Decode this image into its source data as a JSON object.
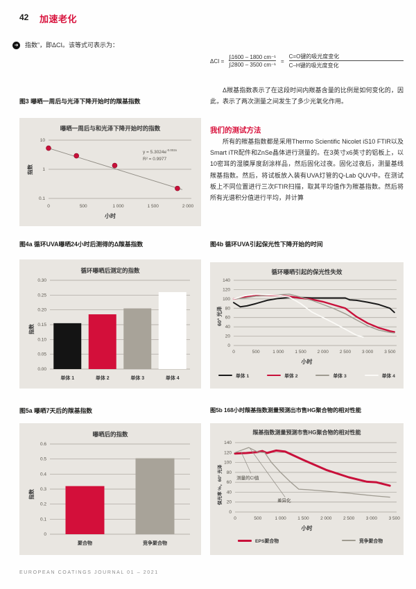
{
  "page": {
    "number": "42",
    "section_title": "加速老化",
    "footer": "EUROPEAN COATINGS JOURNAL 01 – 2021"
  },
  "colors": {
    "accent_red": "#d8123c",
    "panel_background": "#e9e6e1",
    "gridline": "#a6a19a"
  },
  "intro": {
    "bullet_text": "指数”，即ΔCI。该等式可表示为：",
    "formula": {
      "lhs": "ΔCI =",
      "frac1_num": "∫ᵢ1600 – 1800 cm⁻¹",
      "frac1_den": "∫ᵢ2800 – 3500 cm⁻¹",
      "equals": "=",
      "frac2_num": "C=O键的吸光度变化",
      "frac2_den": "C–H键的吸光度变化"
    },
    "paragraph": "Δ羰基指数表示了在这段时间内羰基含量的比例是如何变化的，因此，表示了两次测量之间发生了多少光氧化作用。"
  },
  "method": {
    "heading": "我们的测试方法",
    "paragraph": "所有的羰基指数都是采用Thermo Scientific Nicolet iS10 FTIR以及Smart iTR配件和ZnSe晶体进行测量的。在3英寸x6英寸的铝板上，以10密耳的湿膜厚度刮涂样品，然后固化过夜。固化过夜后，测量基线羰基指数。然后，将试板放入装有UVA灯管的Q-Lab QUV中。在测试板上不同位置进行三次FTIR扫描，取其平均值作为羰基指数。然后将所有光谱积分值进行平均，并计算"
  },
  "figures": {
    "fig3_caption": "图3 曝晒一周后与光泽下降开始时的羰基指数",
    "fig4a_caption": "图4a 循环UVA曝晒24小时后测得的Δ羰基指数",
    "fig4b_caption": "图4b 循环UVA引起保光性下降开始的时间",
    "fig5a_caption": "图5a 曝晒7天后的羰基指数",
    "fig5b_caption": "图5b 168小时羰基指数测量预测出市售HG聚合物的相对性能"
  },
  "chart_data": [
    {
      "id": "fig3",
      "type": "scatter",
      "title": "曝晒一周后与和光泽下降开始时的指数",
      "xlabel": "小时",
      "ylabel": "指数",
      "yscale": "log",
      "ylim": [
        0.1,
        10
      ],
      "xlim": [
        0,
        2050
      ],
      "yticks": {
        "values": [
          10,
          1,
          0.1
        ],
        "labels": [
          "10",
          "1",
          "0.1"
        ]
      },
      "xticks": {
        "values": [
          0,
          500,
          1000,
          1500,
          2000
        ],
        "labels": [
          "0",
          "500",
          "1 000",
          "1 500",
          "2 000"
        ]
      },
      "points": [
        [
          0,
          5.3
        ],
        [
          400,
          2.9
        ],
        [
          950,
          1.35
        ],
        [
          1850,
          0.22
        ]
      ],
      "trend": {
        "x": [
          0,
          1920
        ],
        "y": [
          5.3,
          0.2
        ]
      },
      "point_color": "#c8103a",
      "equation": {
        "base": "y = 5.3024e",
        "exponent": "-0.002x",
        "r2": "R² = 0.9977"
      }
    },
    {
      "id": "fig4a",
      "type": "bar",
      "title": "循环曝晒后测定的指数",
      "ylabel": "指数",
      "ylim": [
        0,
        0.3
      ],
      "yticks": {
        "values": [
          0,
          0.05,
          0.1,
          0.15,
          0.2,
          0.25,
          0.3
        ],
        "labels": [
          "0.00",
          "0.05",
          "0.10",
          "0.15",
          "0.20",
          "0.25",
          "0.30"
        ]
      },
      "categories": [
        "单体 1",
        "单体 2",
        "单体 3",
        "单体 4"
      ],
      "values": [
        0.155,
        0.185,
        0.205,
        0.26
      ],
      "colors": [
        "#141414",
        "#d30f3a",
        "#a8a399",
        "#ffffff"
      ]
    },
    {
      "id": "fig4b",
      "type": "line",
      "title": "循环曝晒引起的保光性失效",
      "xlabel": "小时",
      "ylabel": "60° 光泽",
      "xlim": [
        0,
        3650
      ],
      "ylim": [
        0,
        140
      ],
      "yticks": {
        "values": [
          0,
          20,
          40,
          60,
          80,
          100,
          120,
          140
        ],
        "labels": [
          "0",
          "20",
          "40",
          "60",
          "80",
          "100",
          "120",
          "140"
        ]
      },
      "xticks": {
        "values": [
          0,
          500,
          1000,
          1500,
          2000,
          2500,
          3000,
          3500
        ],
        "labels": [
          "0",
          "500",
          "1 000",
          "1 500",
          "2 000",
          "2 500",
          "3 000",
          "3 500"
        ]
      },
      "series": [
        {
          "name": "单体 1",
          "color": "#1a1a1a",
          "width": 2,
          "x": [
            0,
            150,
            300,
            500,
            750,
            1000,
            1250,
            1500,
            1750,
            2000,
            2250,
            2500,
            2600,
            2750,
            3000,
            3250,
            3500,
            3600
          ],
          "y": [
            92,
            83,
            85,
            90,
            97,
            101,
            103,
            103,
            102,
            102,
            102,
            102,
            98,
            97,
            93,
            88,
            80,
            71
          ]
        },
        {
          "name": "单体 2",
          "color": "#c8103a",
          "width": 2.4,
          "x": [
            0,
            250,
            500,
            750,
            1000,
            1250,
            1500,
            1750,
            2000,
            2250,
            2500,
            2750,
            3000,
            3250,
            3500,
            3600
          ],
          "y": [
            100,
            104,
            107,
            108,
            108,
            105,
            102,
            99,
            94,
            87,
            80,
            62,
            48,
            38,
            31,
            29
          ]
        },
        {
          "name": "单体 3",
          "color": "#9e9a90",
          "width": 1.4,
          "x": [
            0,
            250,
            500,
            750,
            1000,
            1250,
            1500,
            1750,
            2000,
            2250,
            2500,
            2750,
            3000,
            3250,
            3500,
            3600
          ],
          "y": [
            100,
            102,
            106,
            108,
            109,
            110,
            104,
            97,
            88,
            79,
            68,
            55,
            42,
            33,
            28,
            27
          ]
        },
        {
          "name": "单体 4",
          "color": "#fbfaf7",
          "width": 1.8,
          "x": [
            0,
            250,
            500,
            750,
            1000,
            1250,
            1500,
            1750,
            2000,
            2250,
            2500,
            2750,
            2900
          ],
          "y": [
            100,
            107,
            110,
            109,
            108,
            104,
            90,
            72,
            60,
            48,
            35,
            22,
            18
          ]
        }
      ]
    },
    {
      "id": "fig5a",
      "type": "bar",
      "title": "曝晒后的指数",
      "ylabel": "指数",
      "ylim": [
        0,
        0.6
      ],
      "yticks": {
        "values": [
          0,
          0.1,
          0.2,
          0.3,
          0.4,
          0.5,
          0.6
        ],
        "labels": [
          "0",
          "0.1",
          "0.2",
          "0.3",
          "0.4",
          "0.5",
          "0.6"
        ]
      },
      "categories": [
        "聚合物",
        "竞争聚合物"
      ],
      "values": [
        0.32,
        0.505
      ],
      "colors": [
        "#d30f3a",
        "#a8a399"
      ]
    },
    {
      "id": "fig5b",
      "type": "line",
      "title": "羰基指数测量预测市售HG聚合物的相对性能",
      "xlabel": "小时",
      "ylabel": "保光率 %，60° 光泽",
      "xlim": [
        0,
        3550
      ],
      "ylim": [
        0,
        140
      ],
      "yticks": {
        "values": [
          0,
          20,
          40,
          60,
          80,
          100,
          120,
          140
        ],
        "labels": [
          "0",
          "20",
          "40",
          "60",
          "80",
          "100",
          "120",
          "140"
        ]
      },
      "xticks": {
        "values": [
          0,
          500,
          1000,
          1500,
          2000,
          2500,
          3000,
          3500
        ],
        "labels": [
          "0",
          "500",
          "1 000",
          "1 500",
          "2 000",
          "2 500",
          "3 000",
          "3 500"
        ]
      },
      "series": [
        {
          "name": "EPS聚合物",
          "color": "#c8103a",
          "width": 3,
          "x": [
            0,
            250,
            500,
            600,
            700,
            900,
            1100,
            1500,
            2000,
            2500,
            2900,
            3100,
            3400
          ],
          "y": [
            118,
            119,
            121,
            123,
            119,
            124,
            122,
            105,
            85,
            70,
            61,
            60,
            53
          ]
        },
        {
          "name": "竞争聚合物",
          "color": "#9e9a90",
          "width": 1.3,
          "x": [
            0,
            300,
            500,
            650,
            800,
            1000,
            1200,
            1400,
            1600,
            2000,
            2500,
            3000,
            3400
          ],
          "y": [
            120,
            130,
            121,
            120,
            100,
            80,
            62,
            46,
            45,
            42,
            38,
            33,
            30
          ]
        }
      ],
      "annotations": [
        {
          "text": "测量的CI值",
          "x": 280,
          "y": 66,
          "line": [
            [
              130,
              122
            ],
            [
              350,
              78
            ]
          ]
        },
        {
          "text": "差异化",
          "x": 1080,
          "y": 20,
          "line": [
            [
              330,
              128
            ],
            [
              1100,
              30
            ]
          ]
        }
      ]
    }
  ]
}
